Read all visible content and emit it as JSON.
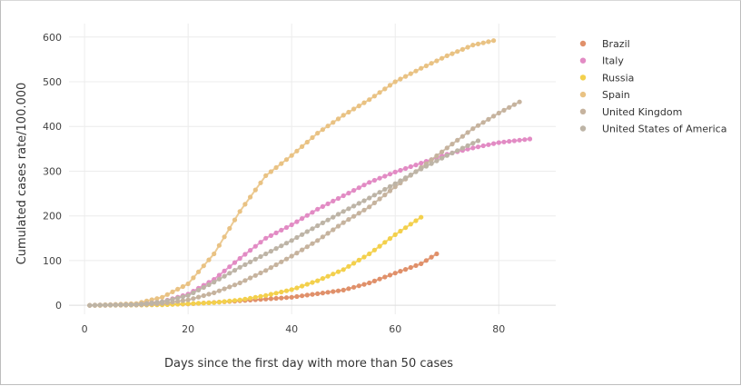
{
  "chart_data": {
    "type": "scatter",
    "xlabel": "Days since the first day with more than 50 cases",
    "ylabel": "Cumulated cases rate/100.000",
    "xlim": [
      -3,
      91
    ],
    "ylim": [
      -20,
      630
    ],
    "xticks": [
      0,
      20,
      40,
      60,
      80
    ],
    "yticks": [
      0,
      100,
      200,
      300,
      400,
      500,
      600
    ],
    "grid": true,
    "legend_position": "right",
    "series": [
      {
        "name": "Brazil",
        "color": "#e0906a",
        "x_start": 1,
        "x_end": 68,
        "anchors": [
          [
            1,
            0
          ],
          [
            10,
            0.5
          ],
          [
            20,
            3
          ],
          [
            30,
            10
          ],
          [
            40,
            18
          ],
          [
            50,
            34
          ],
          [
            55,
            50
          ],
          [
            60,
            72
          ],
          [
            65,
            93
          ],
          [
            68,
            115
          ]
        ]
      },
      {
        "name": "Italy",
        "color": "#e28bc4",
        "x_start": 1,
        "x_end": 86,
        "anchors": [
          [
            1,
            0
          ],
          [
            10,
            3
          ],
          [
            15,
            8
          ],
          [
            20,
            25
          ],
          [
            25,
            58
          ],
          [
            30,
            105
          ],
          [
            35,
            150
          ],
          [
            40,
            180
          ],
          [
            45,
            215
          ],
          [
            50,
            245
          ],
          [
            55,
            275
          ],
          [
            60,
            298
          ],
          [
            65,
            318
          ],
          [
            70,
            338
          ],
          [
            75,
            352
          ],
          [
            80,
            364
          ],
          [
            86,
            372
          ]
        ]
      },
      {
        "name": "Russia",
        "color": "#f3d04c",
        "x_start": 1,
        "x_end": 65,
        "anchors": [
          [
            1,
            0
          ],
          [
            15,
            1
          ],
          [
            25,
            6
          ],
          [
            30,
            12
          ],
          [
            35,
            22
          ],
          [
            40,
            35
          ],
          [
            45,
            55
          ],
          [
            50,
            80
          ],
          [
            55,
            115
          ],
          [
            60,
            158
          ],
          [
            65,
            197
          ]
        ]
      },
      {
        "name": "Spain",
        "color": "#e9c283",
        "x_start": 1,
        "x_end": 79,
        "anchors": [
          [
            1,
            0
          ],
          [
            10,
            4
          ],
          [
            15,
            18
          ],
          [
            20,
            48
          ],
          [
            25,
            115
          ],
          [
            30,
            210
          ],
          [
            35,
            290
          ],
          [
            40,
            335
          ],
          [
            45,
            385
          ],
          [
            50,
            425
          ],
          [
            55,
            460
          ],
          [
            60,
            500
          ],
          [
            65,
            530
          ],
          [
            70,
            558
          ],
          [
            75,
            582
          ],
          [
            79,
            592
          ]
        ]
      },
      {
        "name": "United Kingdom",
        "color": "#c6b39e",
        "x_start": 1,
        "x_end": 84,
        "anchors": [
          [
            1,
            0
          ],
          [
            10,
            1
          ],
          [
            15,
            4
          ],
          [
            20,
            12
          ],
          [
            25,
            28
          ],
          [
            30,
            50
          ],
          [
            35,
            78
          ],
          [
            40,
            110
          ],
          [
            45,
            145
          ],
          [
            50,
            185
          ],
          [
            55,
            220
          ],
          [
            60,
            265
          ],
          [
            65,
            308
          ],
          [
            70,
            352
          ],
          [
            75,
            395
          ],
          [
            80,
            430
          ],
          [
            84,
            455
          ]
        ]
      },
      {
        "name": "United States of America",
        "color": "#bdb4a6",
        "x_start": 1,
        "x_end": 76,
        "anchors": [
          [
            1,
            0
          ],
          [
            10,
            2
          ],
          [
            15,
            8
          ],
          [
            20,
            22
          ],
          [
            25,
            52
          ],
          [
            30,
            85
          ],
          [
            35,
            115
          ],
          [
            40,
            145
          ],
          [
            45,
            178
          ],
          [
            50,
            210
          ],
          [
            55,
            240
          ],
          [
            60,
            272
          ],
          [
            65,
            305
          ],
          [
            70,
            335
          ],
          [
            76,
            368
          ]
        ]
      }
    ]
  }
}
